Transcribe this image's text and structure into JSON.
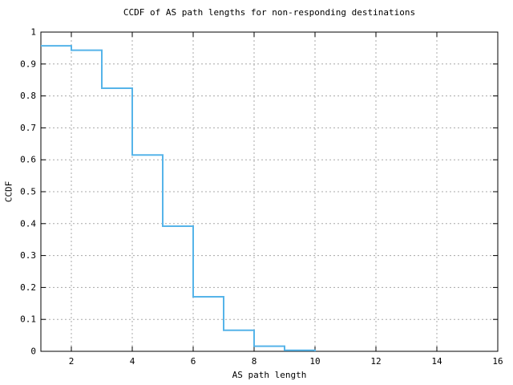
{
  "chart_data": {
    "type": "line",
    "style": "step-ccdf",
    "title": "CCDF of AS path lengths for non-responding destinations",
    "xlabel": "AS path length",
    "ylabel": "CCDF",
    "xlim": [
      1,
      16
    ],
    "ylim": [
      0,
      1
    ],
    "xticks": [
      2,
      4,
      6,
      8,
      10,
      12,
      14,
      16
    ],
    "yticks": [
      0,
      0.1,
      0.2,
      0.3,
      0.4,
      0.5,
      0.6,
      0.7,
      0.8,
      0.9,
      1
    ],
    "grid": true,
    "legend": "none",
    "series": [
      {
        "name": "ccdf-of-as-path-length",
        "color": "#56B4E9",
        "points": [
          [
            1,
            0.957
          ],
          [
            2,
            0.943
          ],
          [
            3,
            0.824
          ],
          [
            4,
            0.615
          ],
          [
            5,
            0.392
          ],
          [
            6,
            0.171
          ],
          [
            7,
            0.066
          ],
          [
            8,
            0.016
          ],
          [
            9,
            0.003
          ],
          [
            10,
            0
          ]
        ]
      }
    ]
  },
  "colors": {
    "background": "#ffffff",
    "border": "#000000",
    "grid": "#a8a8a8",
    "line": "#56B4E9",
    "text": "#000000"
  }
}
